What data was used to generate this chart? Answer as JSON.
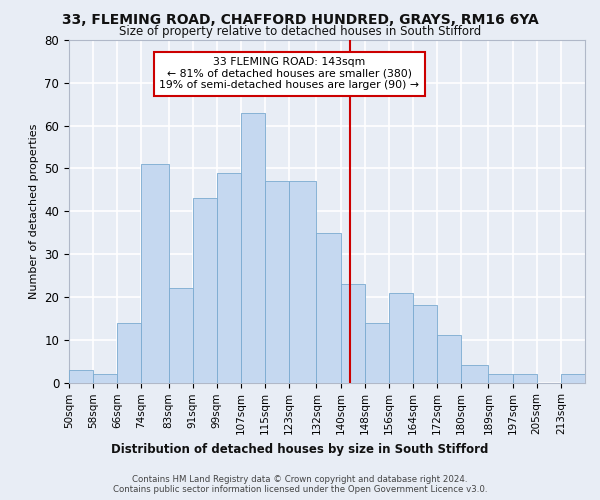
{
  "title_line1": "33, FLEMING ROAD, CHAFFORD HUNDRED, GRAYS, RM16 6YA",
  "title_line2": "Size of property relative to detached houses in South Stifford",
  "xlabel": "Distribution of detached houses by size in South Stifford",
  "ylabel": "Number of detached properties",
  "footer_line1": "Contains HM Land Registry data © Crown copyright and database right 2024.",
  "footer_line2": "Contains public sector information licensed under the Open Government Licence v3.0.",
  "bin_labels": [
    "50sqm",
    "58sqm",
    "66sqm",
    "74sqm",
    "83sqm",
    "91sqm",
    "99sqm",
    "107sqm",
    "115sqm",
    "123sqm",
    "132sqm",
    "140sqm",
    "148sqm",
    "156sqm",
    "164sqm",
    "172sqm",
    "180sqm",
    "189sqm",
    "197sqm",
    "205sqm",
    "213sqm"
  ],
  "bar_values": [
    3,
    2,
    14,
    51,
    22,
    43,
    49,
    63,
    47,
    47,
    35,
    23,
    14,
    21,
    18,
    11,
    4,
    2,
    2,
    0,
    2
  ],
  "bin_edges": [
    50,
    58,
    66,
    74,
    83,
    91,
    99,
    107,
    115,
    123,
    132,
    140,
    148,
    156,
    164,
    172,
    180,
    189,
    197,
    205,
    213,
    221
  ],
  "bar_color": "#c5d8f0",
  "bar_edge_color": "#7aaad0",
  "background_color": "#e8edf5",
  "grid_color": "#ffffff",
  "vline_x": 143,
  "vline_color": "#cc0000",
  "annotation_text": "33 FLEMING ROAD: 143sqm\n← 81% of detached houses are smaller (380)\n19% of semi-detached houses are larger (90) →",
  "annotation_box_color": "#ffffff",
  "annotation_box_edge": "#cc0000",
  "ylim": [
    0,
    80
  ],
  "yticks": [
    0,
    10,
    20,
    30,
    40,
    50,
    60,
    70,
    80
  ],
  "figsize": [
    6.0,
    5.0
  ],
  "dpi": 100
}
